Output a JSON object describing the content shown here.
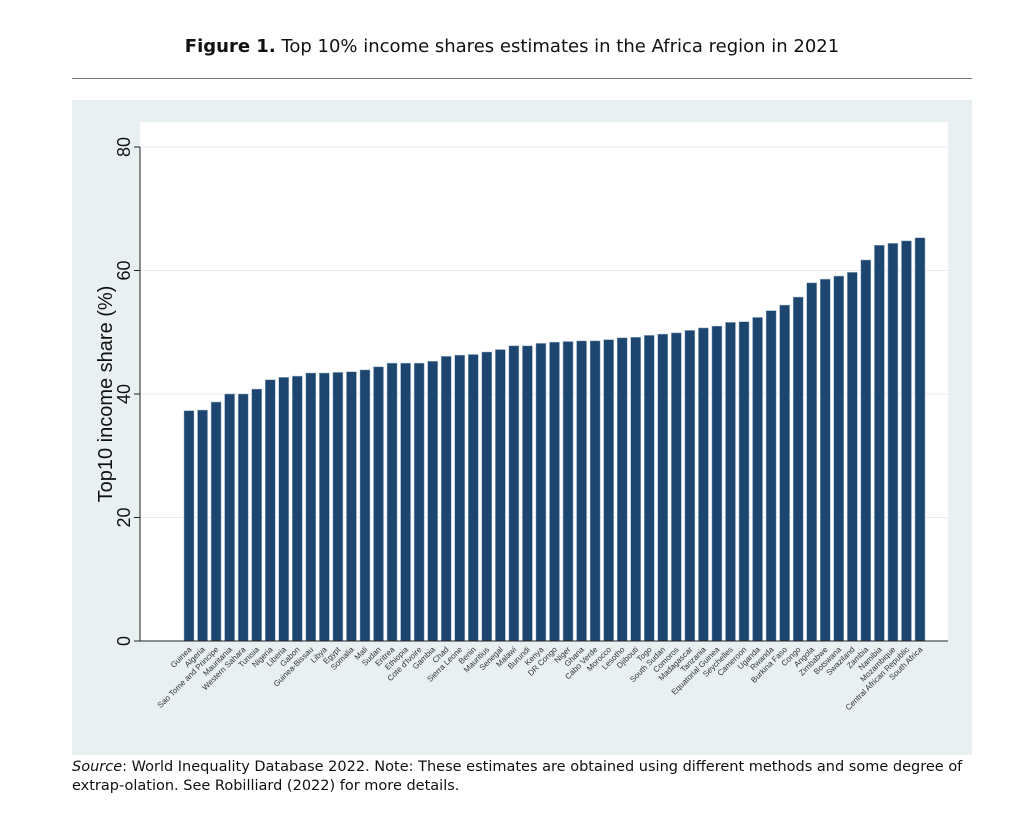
{
  "figure": {
    "label": "Figure 1.",
    "caption": " Top 10% income shares estimates in the Africa region in 2021"
  },
  "source": {
    "label": "Source",
    "text": ": World Inequality Database 2022. Note: These estimates are obtained using different methods and some degree of extrap-olation. See Robilliard (2022) for more details."
  },
  "colors": {
    "bar": "#1c4670",
    "panel": "#e9f0f2"
  },
  "chart_data": {
    "type": "bar",
    "title": "Top 10% income shares estimates in the Africa region in 2021",
    "xlabel": "",
    "ylabel": "Top10 income share (%)",
    "ylim": [
      0,
      80
    ],
    "yticks": [
      0,
      20,
      40,
      60,
      80
    ],
    "grid": true,
    "categories": [
      "Guinea",
      "Algeria",
      "Sao Tome and Principe",
      "Mauritania",
      "Western Sahara",
      "Tunisia",
      "Nigeria",
      "Liberia",
      "Gabon",
      "Guinea-Bissau",
      "Libya",
      "Egypt",
      "Somalia",
      "Mali",
      "Sudan",
      "Eritrea",
      "Ethiopia",
      "Cote d'Ivoire",
      "Gambia",
      "Chad",
      "Sierra Leone",
      "Benin",
      "Mauritius",
      "Senegal",
      "Malawi",
      "Burundi",
      "Kenya",
      "DR Congo",
      "Niger",
      "Ghana",
      "Cabo Verde",
      "Morocco",
      "Lesotho",
      "Djibouti",
      "Togo",
      "South Sudan",
      "Comoros",
      "Madagascar",
      "Tanzania",
      "Equatorial Guinea",
      "Seychelles",
      "Cameroon",
      "Uganda",
      "Rwanda",
      "Burkina Faso",
      "Congo",
      "Angola",
      "Zimbabwe",
      "Botswana",
      "Swaziland",
      "Zambia",
      "Namibia",
      "Mozambique",
      "Central African Republic",
      "South Africa"
    ],
    "values": [
      37.3,
      37.4,
      38.7,
      40.0,
      40.0,
      40.8,
      42.3,
      42.7,
      42.9,
      43.4,
      43.4,
      43.5,
      43.6,
      43.9,
      44.4,
      45.0,
      45.0,
      45.0,
      45.3,
      46.1,
      46.3,
      46.4,
      46.8,
      47.2,
      47.8,
      47.8,
      48.2,
      48.4,
      48.5,
      48.6,
      48.6,
      48.8,
      49.1,
      49.2,
      49.5,
      49.7,
      49.9,
      50.3,
      50.7,
      51.0,
      51.6,
      51.7,
      52.4,
      53.5,
      54.4,
      55.7,
      58.0,
      58.6,
      59.1,
      59.7,
      61.7,
      64.1,
      64.4,
      64.8,
      65.3
    ]
  }
}
